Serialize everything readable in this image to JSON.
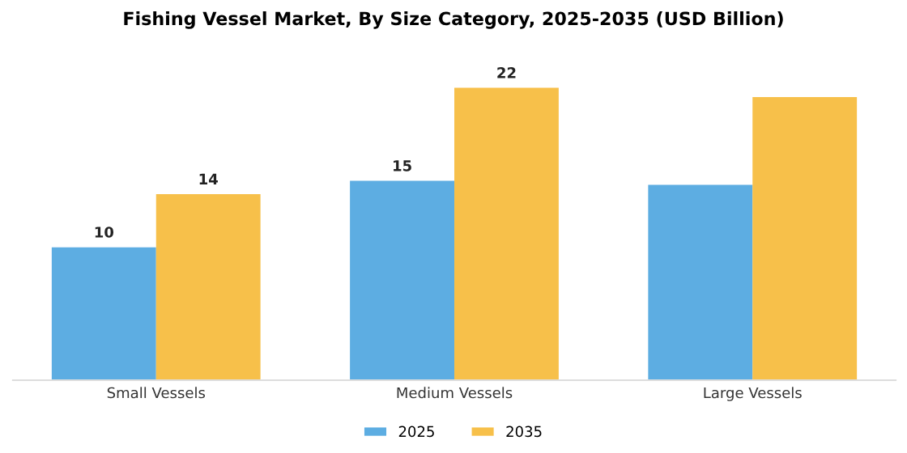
{
  "chart_data": {
    "type": "bar",
    "title": "Fishing Vessel Market, By Size Category, 2025-2035 (USD Billion)",
    "categories": [
      "Small Vessels",
      "Medium Vessels",
      "Large Vessels"
    ],
    "series": [
      {
        "name": "2025",
        "color": "#5dade2",
        "values": [
          10,
          15,
          14.7
        ],
        "value_labels": [
          "10",
          "15",
          null
        ]
      },
      {
        "name": "2035",
        "color": "#f7c04a",
        "values": [
          14,
          22,
          21.3
        ],
        "value_labels": [
          "14",
          "22",
          null
        ]
      }
    ],
    "legend": "bottom",
    "grid": false,
    "tick_labels": "x"
  }
}
